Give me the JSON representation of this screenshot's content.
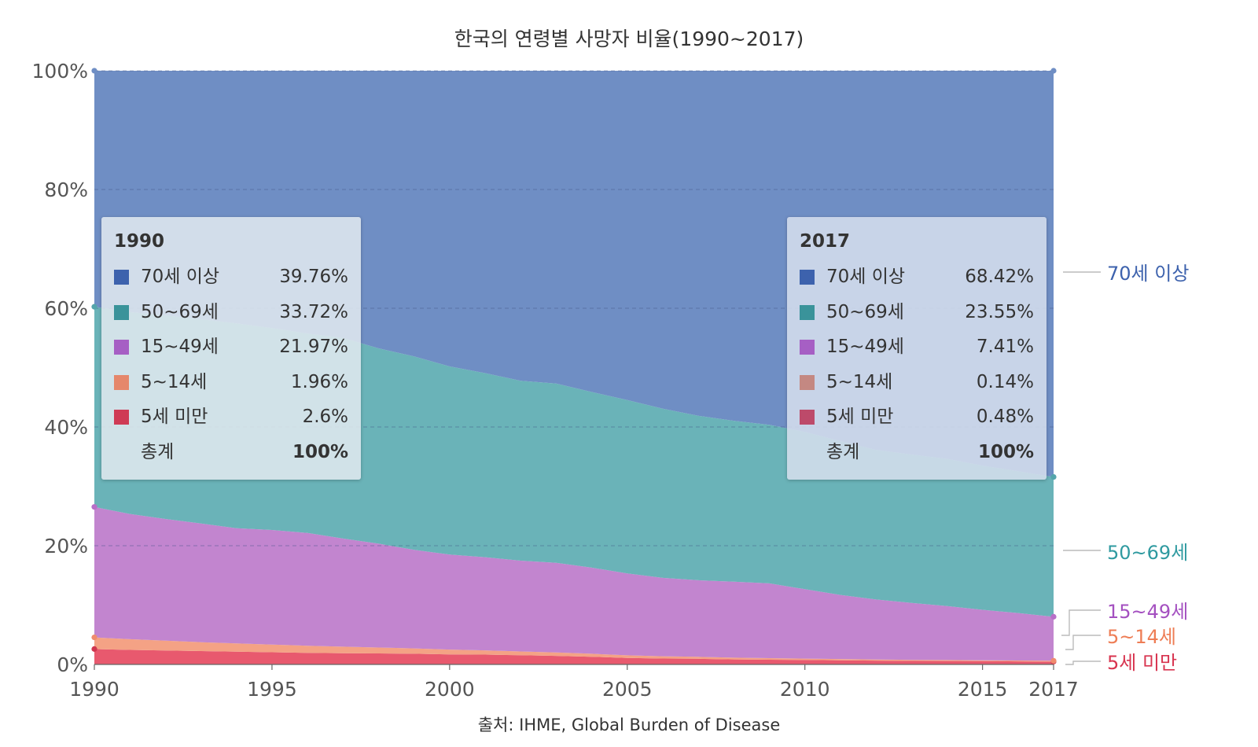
{
  "chart_data": {
    "type": "area",
    "stacked": true,
    "title": "한국의 연령별 사망자 비율(1990~2017)",
    "source": "출처: IHME, Global Burden of Disease",
    "x": [
      1990,
      1991,
      1992,
      1993,
      1994,
      1995,
      1996,
      1997,
      1998,
      1999,
      2000,
      2001,
      2002,
      2003,
      2004,
      2005,
      2006,
      2007,
      2008,
      2009,
      2010,
      2011,
      2012,
      2013,
      2014,
      2015,
      2016,
      2017
    ],
    "x_ticks": [
      1990,
      1995,
      2000,
      2005,
      2010,
      2015,
      2017
    ],
    "x_tick_labels": [
      "1990",
      "1995",
      "2000",
      "2005",
      "2010",
      "2015",
      "2017"
    ],
    "y_ticks": [
      0,
      20,
      40,
      60,
      80,
      100
    ],
    "y_tick_labels": [
      "0%",
      "20%",
      "40%",
      "60%",
      "80%",
      "100%"
    ],
    "xlim": [
      1990,
      2017
    ],
    "ylim": [
      0,
      100
    ],
    "grid": true,
    "series": [
      {
        "name": "5세 미만",
        "color": "#e8596e",
        "marker": "#d0364f",
        "label_color": "#d8344f",
        "values": [
          2.6,
          2.45,
          2.35,
          2.25,
          2.15,
          2.05,
          1.95,
          1.9,
          1.85,
          1.8,
          1.7,
          1.65,
          1.55,
          1.45,
          1.3,
          1.1,
          1.0,
          0.95,
          0.85,
          0.8,
          0.75,
          0.7,
          0.65,
          0.6,
          0.58,
          0.55,
          0.52,
          0.48
        ]
      },
      {
        "name": "5~14세",
        "color": "#f4a285",
        "marker": "#f08c6e",
        "label_color": "#ee7d55",
        "values": [
          1.96,
          1.8,
          1.65,
          1.5,
          1.4,
          1.3,
          1.2,
          1.1,
          1.0,
          0.9,
          0.8,
          0.72,
          0.64,
          0.57,
          0.5,
          0.44,
          0.38,
          0.33,
          0.29,
          0.26,
          0.23,
          0.21,
          0.19,
          0.17,
          0.16,
          0.15,
          0.14,
          0.14
        ]
      },
      {
        "name": "15~49세",
        "color": "#c285cf",
        "marker": "#b86fc8",
        "label_color": "#a450c0",
        "values": [
          21.97,
          21.1,
          20.5,
          20.0,
          19.4,
          19.3,
          19.0,
          18.2,
          17.5,
          16.6,
          16.0,
          15.7,
          15.3,
          15.1,
          14.5,
          13.8,
          13.2,
          12.9,
          12.8,
          12.6,
          11.7,
          10.8,
          10.1,
          9.6,
          9.1,
          8.5,
          8.0,
          7.41
        ]
      },
      {
        "name": "50~69세",
        "color": "#6ab3b8",
        "marker": "#54a5ab",
        "label_color": "#2f9aa0",
        "values": [
          33.72,
          34.0,
          34.3,
          34.4,
          34.5,
          34.0,
          33.6,
          33.8,
          32.9,
          32.6,
          31.7,
          31.0,
          30.3,
          30.2,
          29.6,
          29.2,
          28.5,
          27.7,
          27.1,
          26.7,
          26.5,
          25.9,
          25.2,
          25.0,
          24.8,
          24.3,
          23.9,
          23.55
        ]
      },
      {
        "name": "70세 이상",
        "color": "#6f8ec4",
        "marker": "#6f8ec4",
        "label_color": "#3d62ad",
        "values": [
          39.76,
          40.65,
          41.2,
          41.85,
          42.55,
          43.35,
          44.25,
          45.0,
          46.75,
          48.1,
          49.8,
          50.93,
          52.21,
          52.68,
          54.1,
          55.46,
          56.92,
          58.12,
          58.96,
          59.64,
          60.82,
          62.39,
          63.86,
          64.63,
          65.36,
          66.5,
          67.44,
          68.42
        ]
      }
    ],
    "series_labels": [
      "70세 이상",
      "50~69세",
      "15~49세",
      "5~14세",
      "5세 미만"
    ]
  },
  "legend_left": {
    "year": "1990",
    "rows": [
      {
        "name": "70세 이상",
        "value": "39.76%",
        "color": "#3d62ad"
      },
      {
        "name": "50~69세",
        "value": "33.72%",
        "color": "#3a939a"
      },
      {
        "name": "15~49세",
        "value": "21.97%",
        "color": "#a65fc4"
      },
      {
        "name": "5~14세",
        "value": "1.96%",
        "color": "#e5876b"
      },
      {
        "name": "5세 미만",
        "value": "2.6%",
        "color": "#cf3b55"
      }
    ],
    "total_name": "총계",
    "total_value": "100%"
  },
  "legend_right": {
    "year": "2017",
    "rows": [
      {
        "name": "70세 이상",
        "value": "68.42%",
        "color": "#3d62ad"
      },
      {
        "name": "50~69세",
        "value": "23.55%",
        "color": "#3a939a"
      },
      {
        "name": "15~49세",
        "value": "7.41%",
        "color": "#a65fc4"
      },
      {
        "name": "5~14세",
        "value": "0.14%",
        "color": "#c48882"
      },
      {
        "name": "5세 미만",
        "value": "0.48%",
        "color": "#bd4a6a"
      }
    ],
    "total_name": "총계",
    "total_value": "100%"
  }
}
